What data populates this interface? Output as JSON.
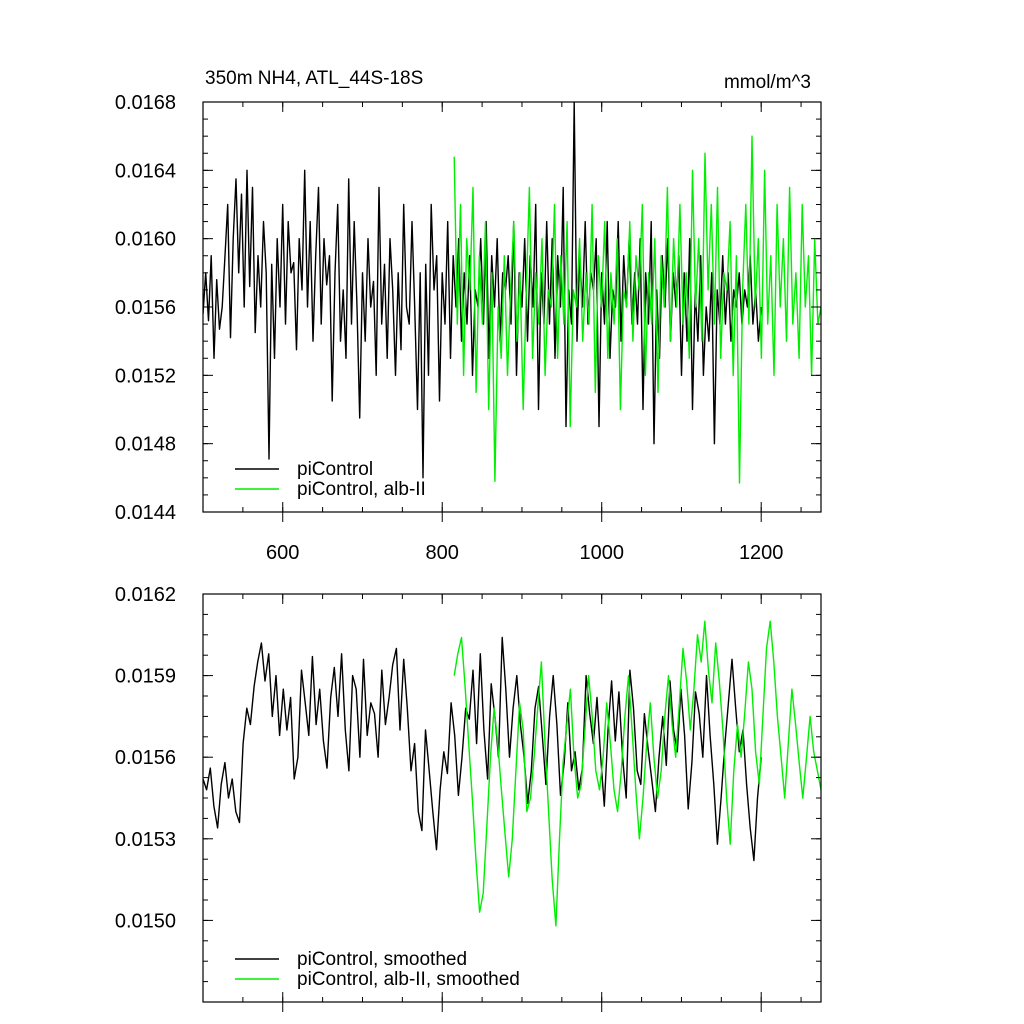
{
  "chart_data": [
    {
      "type": "line",
      "title": "350m NH4, ATL_44S-18S",
      "units": "mmol/m^3",
      "xlim": [
        500,
        1275
      ],
      "ylim": [
        0.0144,
        0.0168
      ],
      "xticks": [
        600,
        800,
        1000,
        1200
      ],
      "xtick_labels": [
        "600",
        "800",
        "1000",
        "1200"
      ],
      "yticks": [
        0.0144,
        0.0148,
        0.0152,
        0.0156,
        0.016,
        0.0164,
        0.0168
      ],
      "ytick_labels": [
        "0.0144",
        "0.0148",
        "0.0152",
        "0.0156",
        "0.0160",
        "0.0164",
        "0.0168"
      ],
      "legend_position": "bottom-left",
      "series": [
        {
          "name": "piControl",
          "color": "#000000",
          "x_start": 500,
          "x_end": 1200,
          "values": [
            0.01556,
            0.0158,
            0.01552,
            0.0159,
            0.0153,
            0.01576,
            0.01547,
            0.0156,
            0.0159,
            0.0162,
            0.01542,
            0.016,
            0.01635,
            0.0158,
            0.01626,
            0.0156,
            0.0164,
            0.01572,
            0.0163,
            0.01545,
            0.0159,
            0.0156,
            0.0161,
            0.0158,
            0.01471,
            0.01585,
            0.0153,
            0.016,
            0.0156,
            0.0162,
            0.0155,
            0.0161,
            0.0158,
            0.01586,
            0.01535,
            0.016,
            0.0157,
            0.0164,
            0.0156,
            0.0161,
            0.0154,
            0.0159,
            0.0163,
            0.0155,
            0.016,
            0.01573,
            0.0159,
            0.01505,
            0.0158,
            0.0162,
            0.0154,
            0.0157,
            0.0153,
            0.01635,
            0.0155,
            0.0161,
            0.0156,
            0.01495,
            0.0158,
            0.0154,
            0.016,
            0.0156,
            0.01575,
            0.0152,
            0.0163,
            0.0155,
            0.01585,
            0.0153,
            0.016,
            0.0157,
            0.0152,
            0.0158,
            0.01535,
            0.0162,
            0.0156,
            0.0155,
            0.0161,
            0.0156,
            0.015,
            0.0158,
            0.0146,
            0.01585,
            0.0152,
            0.0162,
            0.0157,
            0.0159,
            0.01505,
            0.0158,
            0.0155,
            0.0161,
            0.0153,
            0.0159,
            0.0156,
            0.016,
            0.0154,
            0.0158,
            0.0155,
            0.0159,
            0.0152,
            0.0157,
            0.0156,
            0.016,
            0.0155,
            0.0161,
            0.0153,
            0.0159,
            0.0156,
            0.016,
            0.0154,
            0.0158,
            0.0157,
            0.0159,
            0.0155,
            0.0161,
            0.0152,
            0.0158,
            0.0156,
            0.016,
            0.0154,
            0.0159,
            0.0156,
            0.0162,
            0.015,
            0.0158,
            0.0155,
            0.0161,
            0.0155,
            0.016,
            0.0153,
            0.0159,
            0.0156,
            0.0163,
            0.0149,
            0.0157,
            0.0155,
            0.0168,
            0.0154,
            0.0159,
            0.0156,
            0.0161,
            0.0155,
            0.0158,
            0.0157,
            0.016,
            0.0149,
            0.0158,
            0.0155,
            0.0161,
            0.0153,
            0.0157,
            0.0156,
            0.0161,
            0.0154,
            0.0159,
            0.0156,
            0.016,
            0.0155,
            0.0158,
            0.0155,
            0.016,
            0.015,
            0.0158,
            0.0155,
            0.0161,
            0.0148,
            0.0157,
            0.0153,
            0.0159,
            0.0156,
            0.016,
            0.0154,
            0.0158,
            0.0156,
            0.0159,
            0.0152,
            0.0158,
            0.0154,
            0.016,
            0.015,
            0.0157,
            0.0154,
            0.0159,
            0.0152,
            0.0156,
            0.0154,
            0.0158,
            0.0148,
            0.0157,
            0.0155,
            0.0159,
            0.0155,
            0.0158,
            0.0154,
            0.0157,
            0.0156,
            0.0158,
            0.0155,
            0.0157,
            0.0156,
            0.0159,
            0.0155,
            0.0157,
            0.0154,
            0.0156
          ]
        },
        {
          "name": "piControl, alb-II",
          "color": "#00ee00",
          "x_start": 815,
          "x_end": 1275,
          "values": [
            0.01648,
            0.0155,
            0.0162,
            0.0152,
            0.016,
            0.0157,
            0.0163,
            0.0151,
            0.0159,
            0.0155,
            0.0161,
            0.015,
            0.0158,
            0.01458,
            0.0156,
            0.0153,
            0.0159,
            0.0152,
            0.0157,
            0.0161,
            0.0154,
            0.0158,
            0.015,
            0.0157,
            0.0163,
            0.0153,
            0.0158,
            0.0155,
            0.016,
            0.0152,
            0.0157,
            0.0156,
            0.0162,
            0.0153,
            0.0159,
            0.0155,
            0.0161,
            0.0149,
            0.0157,
            0.0156,
            0.016,
            0.0154,
            0.0158,
            0.0155,
            0.0162,
            0.0151,
            0.0159,
            0.0156,
            0.0161,
            0.0153,
            0.0158,
            0.0155,
            0.016,
            0.015,
            0.0157,
            0.0156,
            0.0161,
            0.0154,
            0.0159,
            0.0157,
            0.0162,
            0.0152,
            0.0158,
            0.0155,
            0.016,
            0.0151,
            0.0159,
            0.0156,
            0.0163,
            0.0154,
            0.016,
            0.0156,
            0.0162,
            0.0155,
            0.0158,
            0.0153,
            0.0164,
            0.0156,
            0.016,
            0.0154,
            0.0165,
            0.0157,
            0.0162,
            0.0155,
            0.0163,
            0.0153,
            0.0158,
            0.0157,
            0.0161,
            0.0152,
            0.0159,
            0.01457,
            0.0157,
            0.0162,
            0.0155,
            0.0166,
            0.0156,
            0.016,
            0.0153,
            0.0164,
            0.0155,
            0.0159,
            0.0152,
            0.0162,
            0.0156,
            0.016,
            0.0154,
            0.0163,
            0.0155,
            0.0158,
            0.0153,
            0.0162,
            0.0156,
            0.0159,
            0.0152,
            0.016,
            0.0155,
            0.0156
          ]
        }
      ]
    },
    {
      "type": "line",
      "xlim": [
        500,
        1275
      ],
      "ylim": [
        0.0147,
        0.0162
      ],
      "xticks": [
        600,
        800,
        1000,
        1200
      ],
      "yticks": [
        0.015,
        0.0153,
        0.0156,
        0.0159,
        0.0162
      ],
      "ytick_labels": [
        "0.0150",
        "0.0153",
        "0.0156",
        "0.0159",
        "0.0162"
      ],
      "legend_position": "bottom-left",
      "series": [
        {
          "name": "piControl, smoothed",
          "color": "#000000",
          "x_start": 500,
          "x_end": 1200,
          "values": [
            0.01552,
            0.01548,
            0.01556,
            0.01542,
            0.01534,
            0.0155,
            0.01558,
            0.01545,
            0.01552,
            0.0154,
            0.01536,
            0.01565,
            0.01578,
            0.01572,
            0.01586,
            0.01595,
            0.01602,
            0.01588,
            0.01598,
            0.01575,
            0.0159,
            0.01568,
            0.01585,
            0.0157,
            0.01582,
            0.01552,
            0.0156,
            0.01592,
            0.0158,
            0.01568,
            0.01597,
            0.01572,
            0.01585,
            0.01566,
            0.01556,
            0.01582,
            0.01593,
            0.01575,
            0.01598,
            0.0157,
            0.01555,
            0.0159,
            0.01585,
            0.0156,
            0.01596,
            0.01568,
            0.0158,
            0.01576,
            0.0156,
            0.01592,
            0.01572,
            0.01582,
            0.01594,
            0.016,
            0.0157,
            0.01596,
            0.01578,
            0.01555,
            0.01565,
            0.0154,
            0.01533,
            0.0157,
            0.01555,
            0.0154,
            0.01526,
            0.01548,
            0.01562,
            0.01554,
            0.0158,
            0.01568,
            0.01546,
            0.0156,
            0.01578,
            0.01574,
            0.01592,
            0.01565,
            0.01598,
            0.0157,
            0.01552,
            0.01587,
            0.01575,
            0.0156,
            0.01604,
            0.01585,
            0.0156,
            0.01578,
            0.0159,
            0.01572,
            0.0156,
            0.01543,
            0.01555,
            0.01578,
            0.01586,
            0.01568,
            0.0155,
            0.01575,
            0.0159,
            0.01572,
            0.01546,
            0.01558,
            0.0158,
            0.01555,
            0.01562,
            0.01548,
            0.01556,
            0.0159,
            0.01576,
            0.01565,
            0.01582,
            0.0156,
            0.01542,
            0.0157,
            0.01588,
            0.01566,
            0.01584,
            0.0156,
            0.01545,
            0.01592,
            0.01578,
            0.01555,
            0.0155,
            0.01576,
            0.01563,
            0.01552,
            0.0154,
            0.0156,
            0.01575,
            0.01557,
            0.01588,
            0.0157,
            0.01562,
            0.01585,
            0.01568,
            0.01541,
            0.01558,
            0.01584,
            0.01576,
            0.0156,
            0.0159,
            0.01568,
            0.0155,
            0.01528,
            0.01545,
            0.01564,
            0.0158,
            0.01596,
            0.01578,
            0.01562,
            0.0157,
            0.0155,
            0.01534,
            0.01522,
            0.01545,
            0.0156
          ]
        },
        {
          "name": "piControl, alb-II, smoothed",
          "color": "#00ee00",
          "x_start": 815,
          "x_end": 1275,
          "values": [
            0.0159,
            0.01598,
            0.01604,
            0.01586,
            0.01565,
            0.01545,
            0.01522,
            0.01503,
            0.0151,
            0.01535,
            0.0156,
            0.01578,
            0.01565,
            0.01548,
            0.01532,
            0.01516,
            0.0153,
            0.01555,
            0.0158,
            0.0157,
            0.0154,
            0.01545,
            0.0156,
            0.01578,
            0.01595,
            0.01565,
            0.0154,
            0.01515,
            0.01498,
            0.0153,
            0.01558,
            0.01572,
            0.01585,
            0.0156,
            0.01545,
            0.0155,
            0.0157,
            0.0159,
            0.01575,
            0.01555,
            0.01548,
            0.0156,
            0.0158,
            0.01565,
            0.01548,
            0.0154,
            0.01555,
            0.01575,
            0.0159,
            0.0157,
            0.01548,
            0.0153,
            0.01545,
            0.01565,
            0.0158,
            0.0156,
            0.01545,
            0.01555,
            0.01575,
            0.0159,
            0.01572,
            0.0156,
            0.0158,
            0.016,
            0.01588,
            0.0157,
            0.01585,
            0.01605,
            0.01595,
            0.0161,
            0.01592,
            0.0158,
            0.01602,
            0.01588,
            0.0157,
            0.01545,
            0.01528,
            0.01555,
            0.01572,
            0.0156,
            0.01576,
            0.01595,
            0.01585,
            0.01562,
            0.0155,
            0.01575,
            0.016,
            0.0161,
            0.01595,
            0.01575,
            0.0156,
            0.01545,
            0.01565,
            0.01585,
            0.01572,
            0.01558,
            0.01545,
            0.0156,
            0.01575,
            0.01562,
            0.01555,
            0.01548
          ]
        }
      ]
    }
  ]
}
